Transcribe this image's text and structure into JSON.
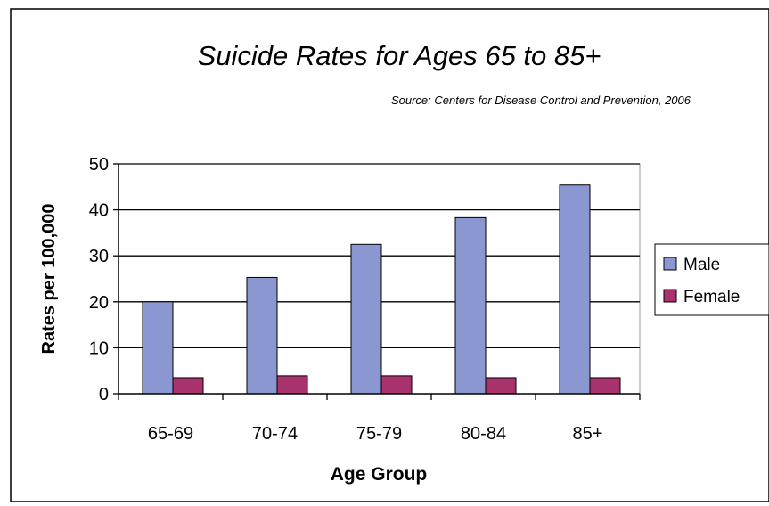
{
  "chart_data": {
    "type": "bar",
    "title": "Suicide Rates for Ages 65 to 85+",
    "subtitle": "Source: Centers for Disease Control and Prevention, 2006",
    "xlabel": "Age Group",
    "ylabel": "Rates per 100,000",
    "ylim": [
      0,
      50
    ],
    "yticks": [
      0,
      10,
      20,
      30,
      40,
      50
    ],
    "grid": true,
    "legend_position": "right",
    "categories": [
      "65-69",
      "70-74",
      "75-79",
      "80-84",
      "85+"
    ],
    "series": [
      {
        "name": "Male",
        "color": "#8b97d0",
        "values": [
          20,
          25.3,
          32.5,
          38.3,
          45.4
        ]
      },
      {
        "name": "Female",
        "color": "#a8326b",
        "values": [
          3.5,
          3.9,
          3.9,
          3.5,
          3.5
        ]
      }
    ]
  }
}
